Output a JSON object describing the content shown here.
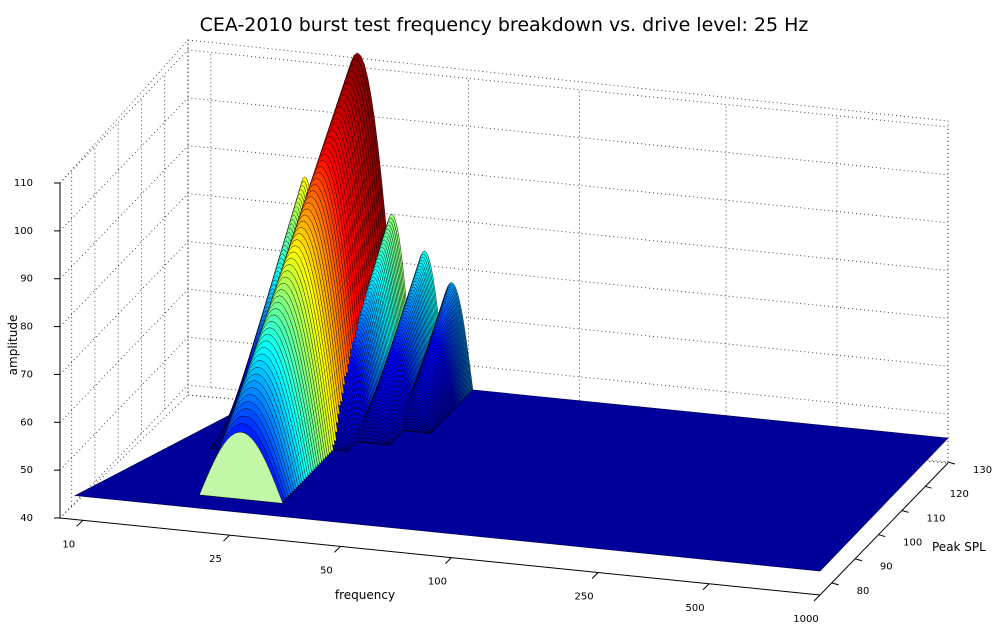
{
  "chart_data": {
    "type": "surface",
    "title": "CEA-2010 burst test frequency breakdown vs. drive level: 25 Hz",
    "xlabel": "frequency",
    "ylabel": "Peak SPL",
    "zlabel": "amplitude",
    "x_ticks": [
      "10",
      "25",
      "50",
      "100",
      "250",
      "500",
      "1000"
    ],
    "y_ticks": [
      "80",
      "90",
      "100",
      "110",
      "120",
      "130"
    ],
    "z_ticks": [
      "40",
      "50",
      "60",
      "70",
      "80",
      "90",
      "100",
      "110"
    ],
    "zlim": [
      40,
      110
    ],
    "colormap": [
      "#00008f",
      "#0000ff",
      "#00ffff",
      "#ffff00",
      "#ff0000",
      "#800000"
    ],
    "grid": true,
    "lobes": [
      {
        "freq": 25,
        "peak_spl_range": [
          80,
          130
        ],
        "amplitude_range": [
          59,
          113
        ]
      },
      {
        "freq": 18,
        "peak_spl_range": [
          98,
          130
        ],
        "amplitude_range": [
          45,
          86
        ]
      },
      {
        "freq": 31,
        "peak_spl_range": [
          102,
          130
        ],
        "amplitude_range": [
          45,
          80
        ]
      },
      {
        "freq": 38,
        "peak_spl_range": [
          106,
          130
        ],
        "amplitude_range": [
          45,
          73
        ]
      },
      {
        "freq": 45,
        "peak_spl_range": [
          112,
          130
        ],
        "amplitude_range": [
          45,
          67
        ]
      }
    ]
  }
}
